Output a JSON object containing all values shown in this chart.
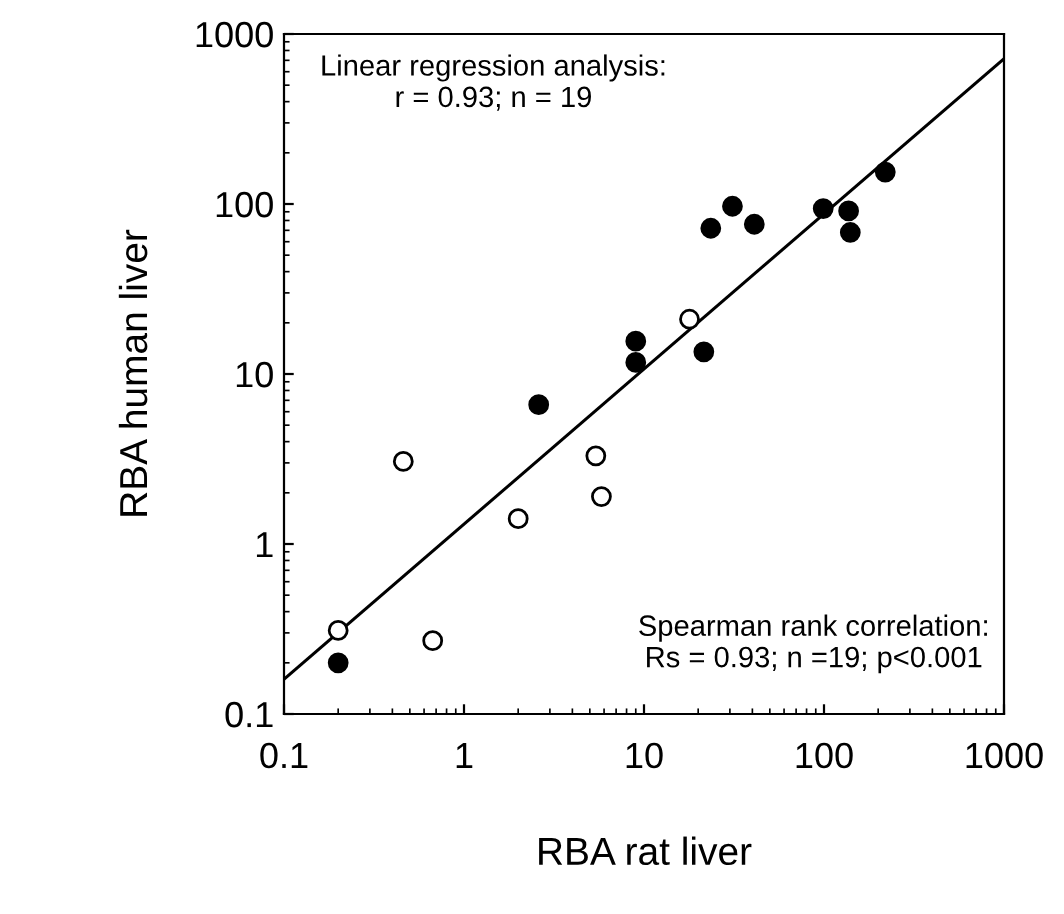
{
  "chart_data": {
    "type": "scatter",
    "xlabel": "RBA rat liver",
    "ylabel": "RBA human liver",
    "log": "xy",
    "grid": false,
    "legend": false,
    "xlim": [
      0.1,
      1000
    ],
    "ylim": [
      0.1,
      1000
    ],
    "xticks": [
      0.1,
      1,
      10,
      100,
      1000
    ],
    "yticks": [
      0.1,
      1,
      10,
      100,
      1000
    ],
    "annotations": [
      "Linear regression analysis:\nr = 0.93; n = 19",
      "Spearman rank correlation:\nRs = 0.93; n =19; p<0.001"
    ],
    "series": [
      {
        "marker": "circle",
        "color": "#000000",
        "x": [
          0.2,
          2.6,
          9.0,
          9.0,
          21.5,
          23.5,
          31,
          41,
          99,
          137,
          140,
          219
        ],
        "values": [
          0.2,
          6.6,
          15.6,
          11.7,
          13.5,
          72,
          97,
          76,
          94,
          91,
          68,
          154
        ]
      },
      {
        "marker": "circle",
        "color": "#ffffff",
        "x": [
          0.2,
          0.46,
          0.67,
          2.0,
          5.4,
          5.8,
          17.9
        ],
        "values": [
          0.31,
          3.06,
          0.27,
          1.41,
          3.3,
          1.9,
          21
        ]
      },
      {
        "type": "line",
        "color": "#000000",
        "x": [
          0.1,
          1000
        ],
        "values": [
          0.16,
          716
        ]
      }
    ]
  }
}
